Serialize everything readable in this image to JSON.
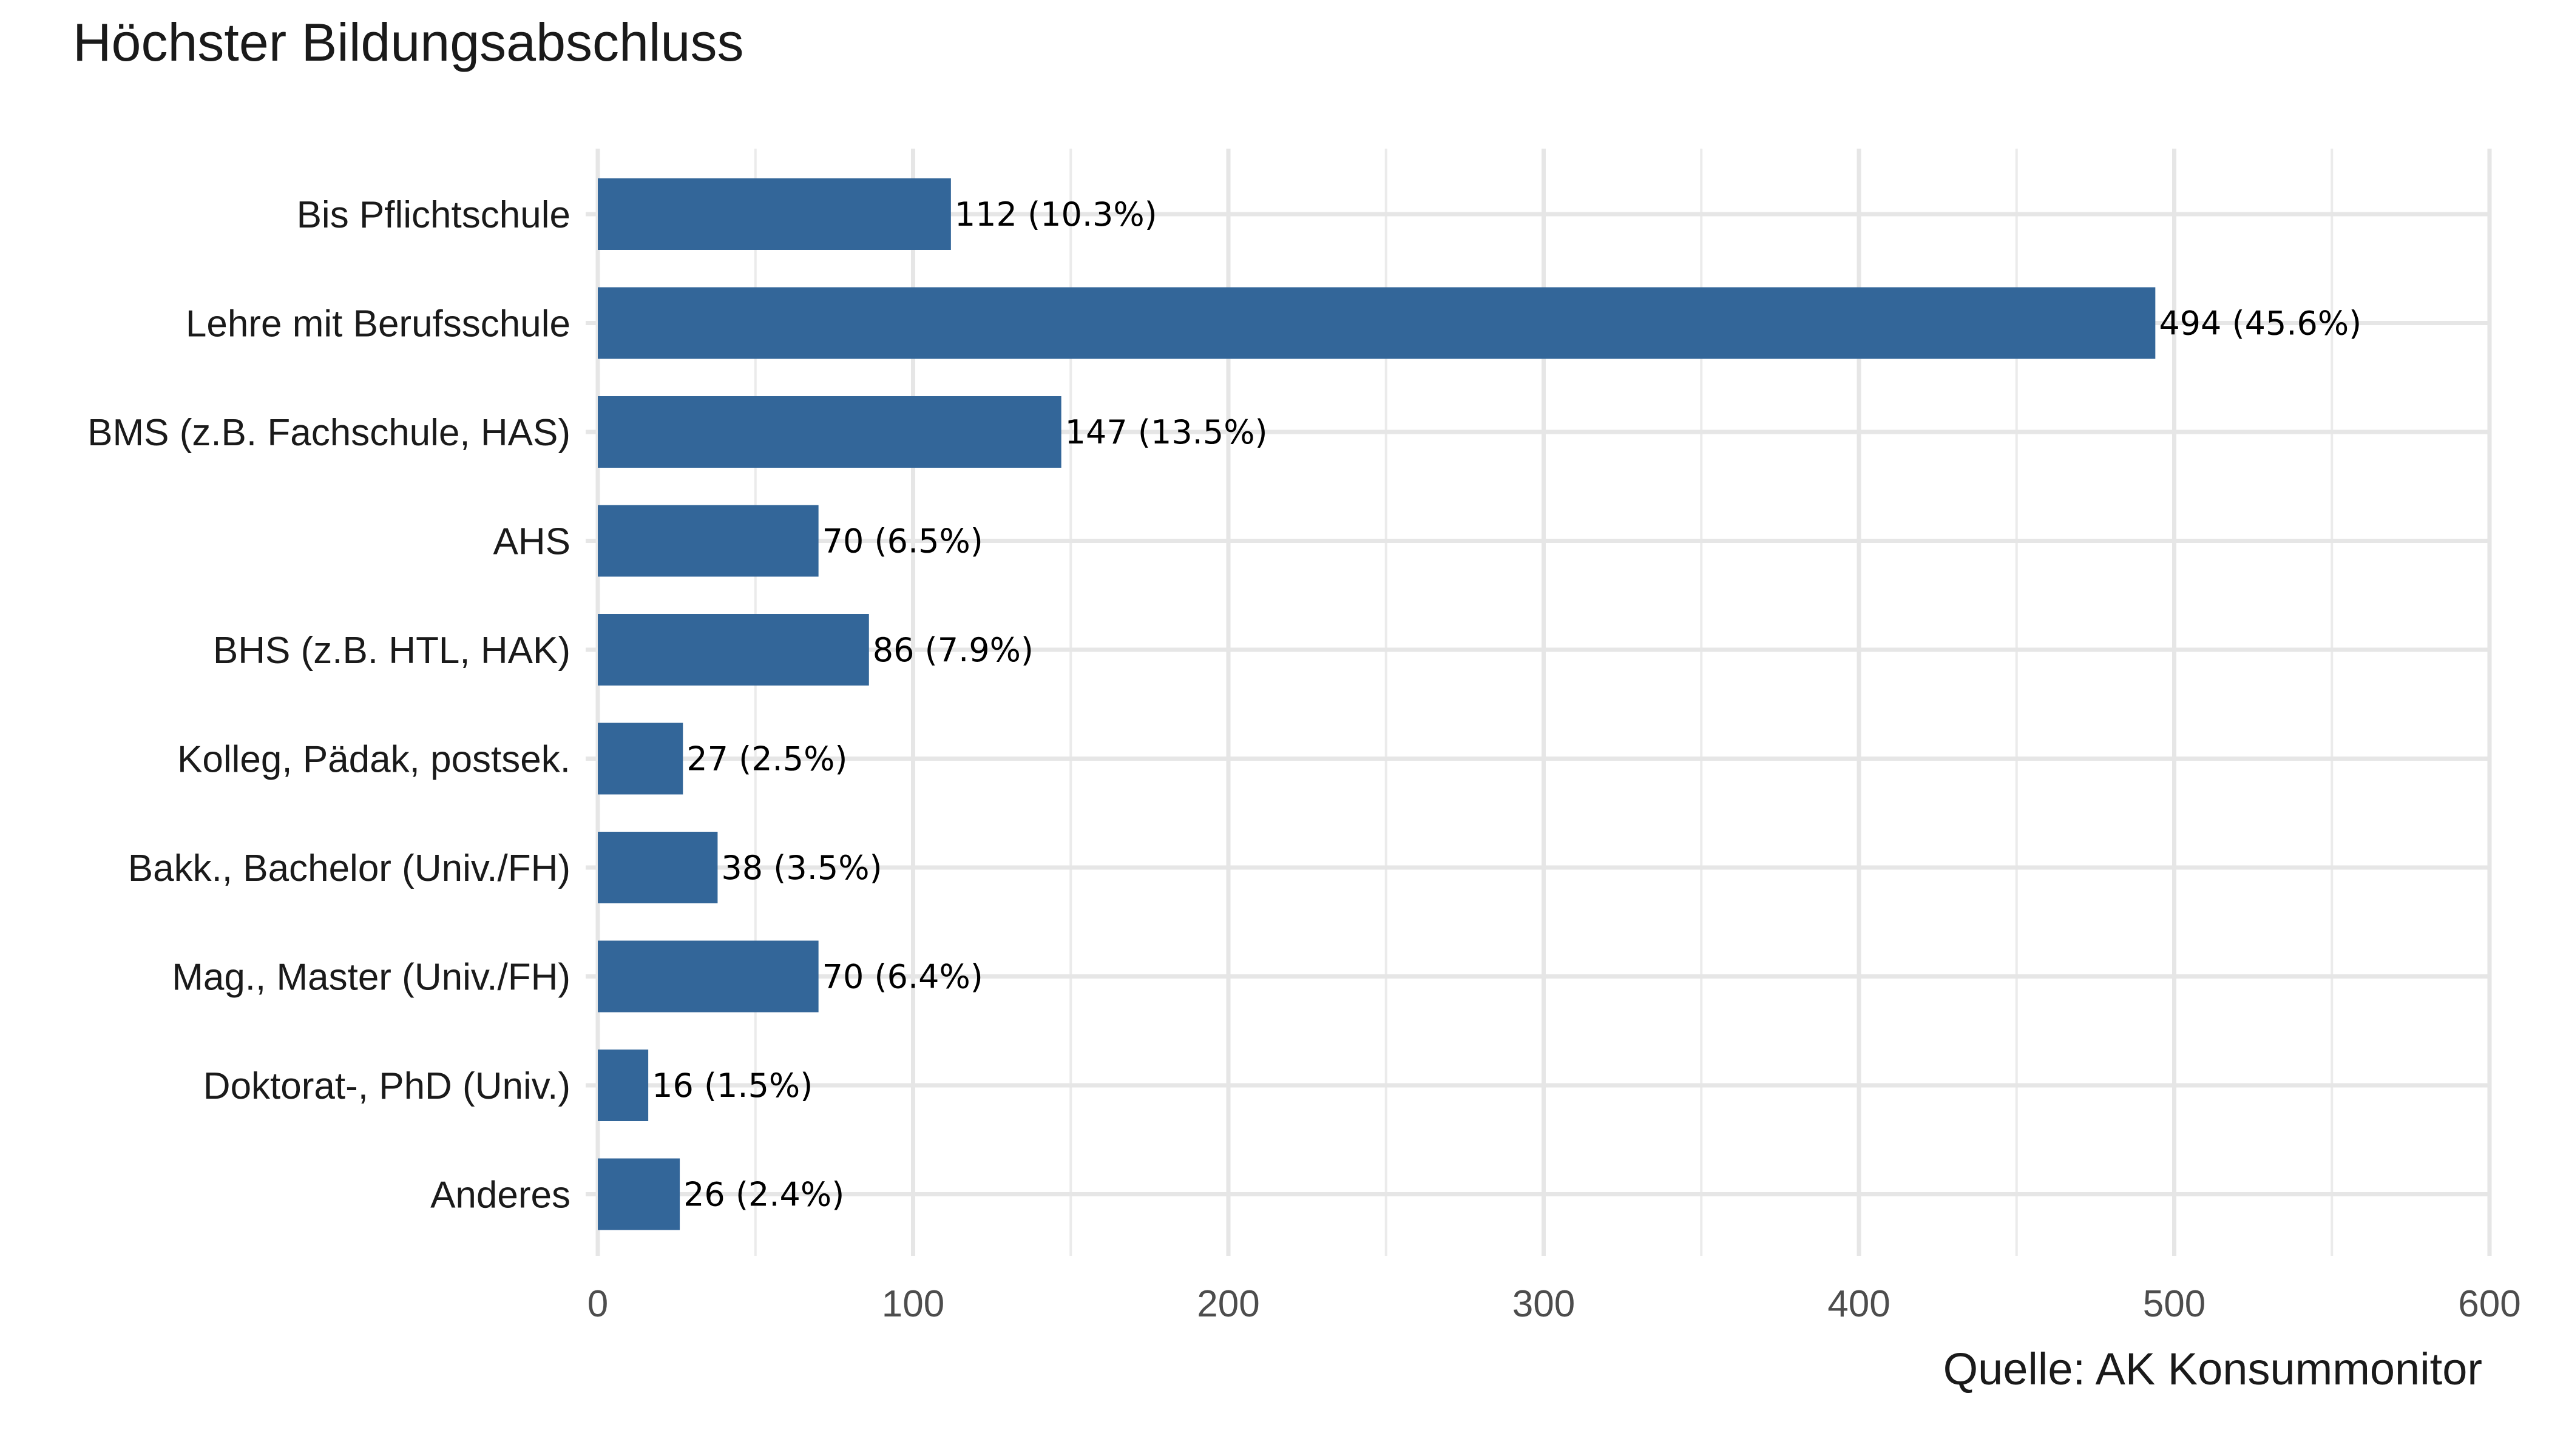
{
  "chart_data": {
    "type": "bar",
    "orientation": "horizontal",
    "title": "Höchster Bildungsabschluss",
    "caption": "Quelle: AK Konsummonitor",
    "xlabel": "",
    "ylabel": "",
    "xlim": [
      0,
      600
    ],
    "x_ticks": [
      "0",
      "100",
      "200",
      "300",
      "400",
      "500",
      "600"
    ],
    "grid": true,
    "bar_color": "#336699",
    "categories": [
      "Bis Pflichtschule",
      "Lehre mit Berufsschule",
      "BMS (z.B. Fachschule, HAS)",
      "AHS",
      "BHS (z.B. HTL, HAK)",
      "Kolleg, Pädak, postsek.",
      "Bakk., Bachelor (Univ./FH)",
      "Mag., Master (Univ./FH)",
      "Doktorat-, PhD (Univ.)",
      "Anderes"
    ],
    "values": [
      112,
      494,
      147,
      70,
      86,
      27,
      38,
      70,
      16,
      26
    ],
    "data_labels": [
      "112 (10.3%)",
      "494 (45.6%)",
      "147 (13.5%)",
      "70 (6.5%)",
      "86 (7.9%)",
      "27 (2.5%)",
      "38 (3.5%)",
      "70 (6.4%)",
      "16 (1.5%)",
      "26 (2.4%)"
    ]
  }
}
